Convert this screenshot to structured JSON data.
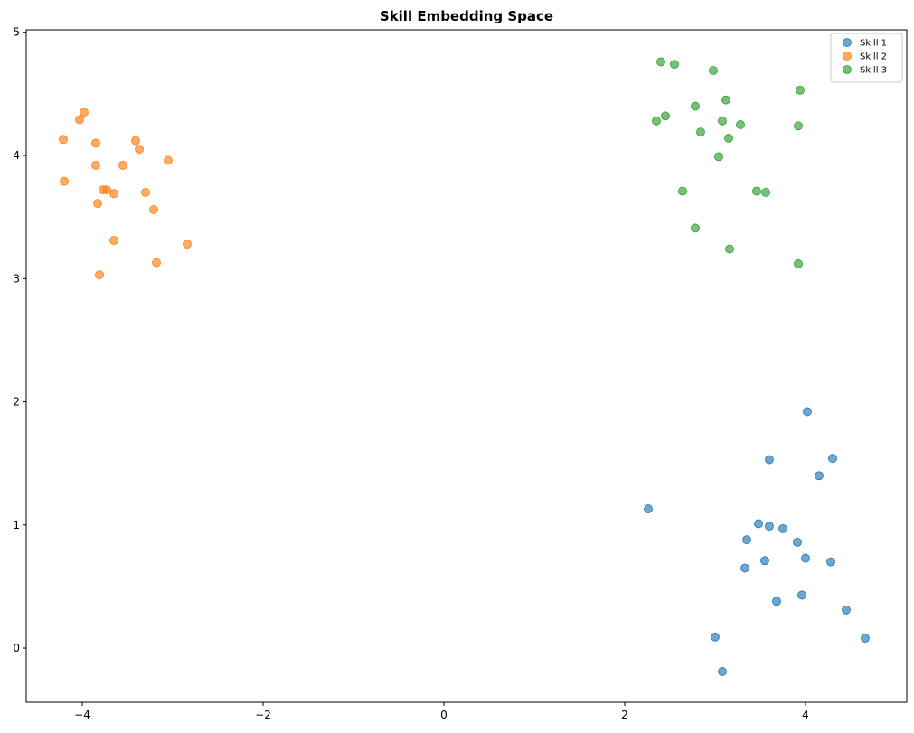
{
  "chart_data": {
    "type": "scatter",
    "title": "Skill Embedding Space",
    "xlabel": "",
    "ylabel": "",
    "xlim": [
      -4.62,
      5.12
    ],
    "ylim": [
      -0.44,
      5.02
    ],
    "xticks": [
      -4,
      -2,
      0,
      2,
      4
    ],
    "yticks": [
      0,
      1,
      2,
      3,
      4,
      5
    ],
    "grid": false,
    "legend": "top-right",
    "series": [
      {
        "name": "Skill 1",
        "color": "#1f77b4",
        "points": [
          [
            4.02,
            1.92
          ],
          [
            4.3,
            1.54
          ],
          [
            3.6,
            1.53
          ],
          [
            4.15,
            1.4
          ],
          [
            2.26,
            1.13
          ],
          [
            3.48,
            1.01
          ],
          [
            3.6,
            0.99
          ],
          [
            3.75,
            0.97
          ],
          [
            3.35,
            0.88
          ],
          [
            3.91,
            0.86
          ],
          [
            4.0,
            0.73
          ],
          [
            3.55,
            0.71
          ],
          [
            4.28,
            0.7
          ],
          [
            3.33,
            0.65
          ],
          [
            3.96,
            0.43
          ],
          [
            3.68,
            0.38
          ],
          [
            4.45,
            0.31
          ],
          [
            3.0,
            0.09
          ],
          [
            4.66,
            0.08
          ],
          [
            3.08,
            -0.19
          ]
        ]
      },
      {
        "name": "Skill 2",
        "color": "#ff7f0e",
        "points": [
          [
            -3.98,
            4.35
          ],
          [
            -4.03,
            4.29
          ],
          [
            -4.21,
            4.13
          ],
          [
            -3.41,
            4.12
          ],
          [
            -3.85,
            4.1
          ],
          [
            -3.37,
            4.05
          ],
          [
            -3.05,
            3.96
          ],
          [
            -3.85,
            3.92
          ],
          [
            -3.55,
            3.92
          ],
          [
            -4.2,
            3.79
          ],
          [
            -3.77,
            3.72
          ],
          [
            -3.73,
            3.72
          ],
          [
            -3.3,
            3.7
          ],
          [
            -3.65,
            3.69
          ],
          [
            -3.83,
            3.61
          ],
          [
            -3.21,
            3.56
          ],
          [
            -3.65,
            3.31
          ],
          [
            -2.84,
            3.28
          ],
          [
            -3.18,
            3.13
          ],
          [
            -3.81,
            3.03
          ]
        ]
      },
      {
        "name": "Skill 3",
        "color": "#2ca02c",
        "points": [
          [
            2.4,
            4.76
          ],
          [
            2.55,
            4.74
          ],
          [
            2.98,
            4.69
          ],
          [
            3.94,
            4.53
          ],
          [
            3.12,
            4.45
          ],
          [
            2.78,
            4.4
          ],
          [
            2.45,
            4.32
          ],
          [
            2.35,
            4.28
          ],
          [
            3.08,
            4.28
          ],
          [
            3.28,
            4.25
          ],
          [
            3.92,
            4.24
          ],
          [
            2.84,
            4.19
          ],
          [
            3.15,
            4.14
          ],
          [
            3.04,
            3.99
          ],
          [
            2.64,
            3.71
          ],
          [
            3.46,
            3.71
          ],
          [
            3.56,
            3.7
          ],
          [
            2.78,
            3.41
          ],
          [
            3.16,
            3.24
          ],
          [
            3.92,
            3.12
          ]
        ]
      }
    ]
  }
}
